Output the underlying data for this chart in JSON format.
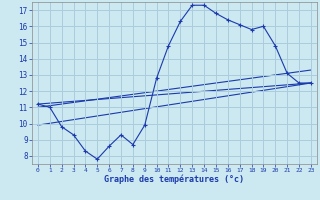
{
  "title": "Graphe des températures (°c)",
  "background_color": "#cce8f0",
  "grid_color": "#aaccdd",
  "line_color": "#1a3aad",
  "xlim": [
    -0.5,
    23.5
  ],
  "ylim": [
    7.5,
    17.5
  ],
  "xticks": [
    0,
    1,
    2,
    3,
    4,
    5,
    6,
    7,
    8,
    9,
    10,
    11,
    12,
    13,
    14,
    15,
    16,
    17,
    18,
    19,
    20,
    21,
    22,
    23
  ],
  "yticks": [
    8,
    9,
    10,
    11,
    12,
    13,
    14,
    15,
    16,
    17
  ],
  "series1_x": [
    0,
    1,
    2,
    3,
    4,
    5,
    6,
    7,
    8,
    9,
    10,
    11,
    12,
    13,
    14,
    15,
    16,
    17,
    18,
    19,
    20,
    21,
    22,
    23
  ],
  "series1_y": [
    11.2,
    11.0,
    9.8,
    9.3,
    8.3,
    7.8,
    8.6,
    9.3,
    8.7,
    9.9,
    12.8,
    14.8,
    16.3,
    17.3,
    17.3,
    16.8,
    16.4,
    16.1,
    15.8,
    16.0,
    14.8,
    13.1,
    12.5,
    12.5
  ],
  "series2_x": [
    0,
    23
  ],
  "series2_y": [
    11.2,
    12.5
  ],
  "series3_x": [
    0,
    23
  ],
  "series3_y": [
    11.0,
    13.3
  ],
  "series4_x": [
    0,
    23
  ],
  "series4_y": [
    9.9,
    12.5
  ]
}
